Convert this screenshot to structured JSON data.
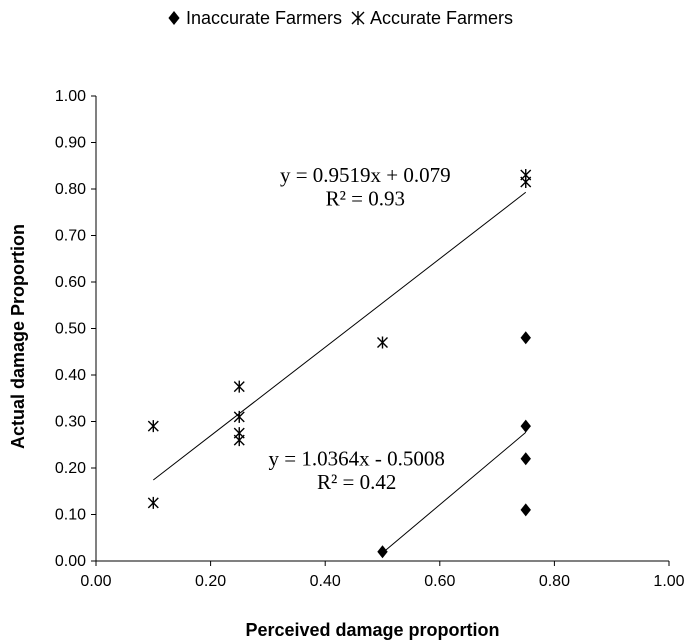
{
  "chart_data": {
    "type": "scatter",
    "title": "",
    "xlabel": "Perceived damage proportion",
    "ylabel": "Actual damage Proportion",
    "xlim": [
      0,
      1
    ],
    "ylim": [
      0,
      1
    ],
    "x_ticks": [
      "0.00",
      "0.20",
      "0.40",
      "0.60",
      "0.80",
      "1.00"
    ],
    "y_ticks": [
      "0.00",
      "0.10",
      "0.20",
      "0.30",
      "0.40",
      "0.50",
      "0.60",
      "0.70",
      "0.80",
      "0.90",
      "1.00"
    ],
    "grid": false,
    "legend_position": "top-center",
    "series": [
      {
        "name": "Inaccurate Farmers",
        "marker": "diamond",
        "color": "#000000",
        "points": [
          [
            0.5,
            0.02
          ],
          [
            0.75,
            0.48
          ],
          [
            0.75,
            0.29
          ],
          [
            0.75,
            0.22
          ],
          [
            0.75,
            0.11
          ]
        ],
        "trendline": {
          "slope": 1.0364,
          "intercept": -0.5008,
          "x_range": [
            0.5,
            0.75
          ],
          "equation": "y = 1.0364x - 0.5008",
          "r2_label": "R² = 0.42"
        }
      },
      {
        "name": "Accurate Farmers",
        "marker": "asterisk",
        "color": "#000000",
        "points": [
          [
            0.1,
            0.29
          ],
          [
            0.1,
            0.125
          ],
          [
            0.25,
            0.375
          ],
          [
            0.25,
            0.31
          ],
          [
            0.25,
            0.275
          ],
          [
            0.25,
            0.26
          ],
          [
            0.5,
            0.47
          ],
          [
            0.75,
            0.83
          ],
          [
            0.75,
            0.815
          ]
        ],
        "trendline": {
          "slope": 0.9519,
          "intercept": 0.079,
          "x_range": [
            0.1,
            0.75
          ],
          "equation": "y = 0.9519x + 0.079",
          "r2_label": "R² = 0.93"
        }
      }
    ]
  }
}
